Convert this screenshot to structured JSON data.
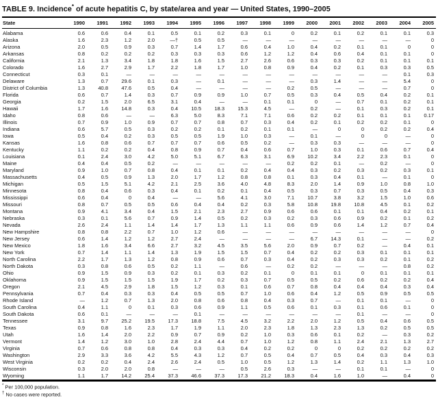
{
  "title": {
    "prefix": "TABLE 9. Incidence",
    "marker": "*",
    "suffix": " of acute hepatitis C, by state/area and year — United States, 1990–2005"
  },
  "table": {
    "columns": [
      "State",
      "1990",
      "1991",
      "1992",
      "1993",
      "1994",
      "1995",
      "1996",
      "1997",
      "1998",
      "1999",
      "2000",
      "2001",
      "2002",
      "2003",
      "2004",
      "2005"
    ],
    "rows": [
      {
        "state": "Alabama",
        "values": [
          "0.6",
          "0.6",
          "0.4",
          "0.1",
          "0.5",
          "0.1",
          "0.2",
          "0.3",
          "0.1",
          "0",
          "0.2",
          "0.1",
          "0.2",
          "0.1",
          "0.1",
          "0.3"
        ]
      },
      {
        "state": "Alaska",
        "values": [
          "1.6",
          "2.3",
          "1.2",
          "2.0",
          "—†",
          "0.5",
          "0.5",
          "—",
          "—",
          "—",
          "—",
          "—",
          "—",
          "—",
          "—",
          "0"
        ]
      },
      {
        "state": "Arizona",
        "values": [
          "2.0",
          "0.5",
          "0.9",
          "0.3",
          "0.7",
          "1.4",
          "1.7",
          "0.6",
          "0.4",
          "1.0",
          "0.4",
          "0.2",
          "0.1",
          "0.1",
          "0",
          "0"
        ]
      },
      {
        "state": "Arkansas",
        "values": [
          "0.8",
          "0.2",
          "0.2",
          "0.2",
          "0.3",
          "0.3",
          "0.3",
          "0.6",
          "1.2",
          "1.2",
          "0.4",
          "0.6",
          "0.4",
          "0.1",
          "0.1",
          "0"
        ]
      },
      {
        "state": "California",
        "values": [
          "2.1",
          "1.3",
          "3.4",
          "1.8",
          "1.8",
          "1.6",
          "1.5",
          "2.7",
          "2.6",
          "0.6",
          "0.3",
          "0.3",
          "0.2",
          "0.1",
          "0.1",
          "0.1"
        ]
      },
      {
        "state": "Colorado",
        "values": [
          "1.6",
          "2.7",
          "2.9",
          "1.7",
          "2.2",
          "1.8",
          "1.7",
          "1.0",
          "0.8",
          "0.9",
          "0.4",
          "0.2",
          "0.1",
          "0.3",
          "0.3",
          "0.5"
        ]
      },
      {
        "state": "Connecticut",
        "values": [
          "0.3",
          "0.1",
          "—",
          "—",
          "—",
          "—",
          "—",
          "—",
          "—",
          "—",
          "—",
          "—",
          "—",
          "—",
          "0.1",
          "0.3"
        ]
      },
      {
        "state": "Delaware",
        "values": [
          "1.3",
          "0.7",
          "29.6",
          "0.1",
          "0.3",
          "—",
          "0.1",
          "—",
          "—",
          "—",
          "0.3",
          "1.4",
          "—",
          "—",
          "5.4",
          "0"
        ]
      },
      {
        "state": "District of Columbia",
        "values": [
          "1.3",
          "40.8",
          "47.6",
          "0.5",
          "0.4",
          "—",
          "—",
          "—",
          "—",
          "0.2",
          "0.5",
          "—",
          "—",
          "—",
          "0.7",
          "0"
        ]
      },
      {
        "state": "Florida",
        "values": [
          "0.6",
          "0.7",
          "1.4",
          "0.3",
          "0.7",
          "0.9",
          "0.9",
          "1.0",
          "0.7",
          "0.5",
          "0.3",
          "0.4",
          "0.5",
          "0.4",
          "0.2",
          "0.1"
        ]
      },
      {
        "state": "Georgia",
        "values": [
          "0.2",
          "1.5",
          "2.0",
          "6.5",
          "3.1",
          "0.4",
          "—",
          "—",
          "0.1",
          "0.1",
          "0",
          "—",
          "0.7",
          "0.1",
          "0.2",
          "0.1"
        ]
      },
      {
        "state": "Hawaii",
        "values": [
          "1.7",
          "1.6",
          "14.8",
          "0.3",
          "0.4",
          "10.5",
          "18.3",
          "15.3",
          "4.5",
          "—",
          "0.2",
          "—",
          "0.1",
          "0.3",
          "0.2",
          "0.1"
        ]
      },
      {
        "state": "Idaho",
        "values": [
          "0.8",
          "0.6",
          "—",
          "—",
          "6.3",
          "5.0",
          "8.3",
          "7.1",
          "7.1",
          "0.6",
          "0.2",
          "0.2",
          "0.1",
          "0.1",
          "0.1",
          "0.17"
        ]
      },
      {
        "state": "Illinois",
        "values": [
          "0.7",
          "0.9",
          "1.0",
          "0.9",
          "0.7",
          "0.7",
          "0.8",
          "0.7",
          "0.3",
          "0.4",
          "0.2",
          "0.1",
          "0.2",
          "0.2",
          "0.1",
          "0"
        ]
      },
      {
        "state": "Indiana",
        "values": [
          "0.6",
          "5.7",
          "0.5",
          "0.3",
          "0.2",
          "0.2",
          "0.1",
          "0.2",
          "0.1",
          "0.1",
          "—",
          "0",
          "0",
          "0.2",
          "0.2",
          "0.4"
        ]
      },
      {
        "state": "Iowa",
        "values": [
          "0.5",
          "0.4",
          "0.2",
          "0.3",
          "0.5",
          "0.5",
          "1.9",
          "1.0",
          "0.3",
          "—",
          "0.1",
          "—",
          "0",
          "0",
          "—",
          "0"
        ]
      },
      {
        "state": "Kansas",
        "values": [
          "1.6",
          "0.8",
          "0.6",
          "0.7",
          "0.7",
          "0.7",
          "0.6",
          "0.5",
          "0.2",
          "—",
          "0.3",
          "0.3",
          "—",
          "—",
          "—",
          "0"
        ]
      },
      {
        "state": "Kentucky",
        "values": [
          "1.1",
          "0.2",
          "0.2",
          "0.4",
          "0.8",
          "0.9",
          "0.7",
          "0.4",
          "0.6",
          "0.7",
          "1.0",
          "0.3",
          "0.1",
          "0.6",
          "0.7",
          "0.4"
        ]
      },
      {
        "state": "Louisiana",
        "values": [
          "0.1",
          "2.4",
          "3.0",
          "4.2",
          "5.0",
          "5.1",
          "6.7",
          "6.3",
          "3.1",
          "6.9",
          "10.2",
          "3.4",
          "2.2",
          "2.3",
          "0.1",
          "0"
        ]
      },
      {
        "state": "Maine",
        "values": [
          "0.4",
          "0.4",
          "0.5",
          "0.2",
          "—",
          "—",
          "—",
          "—",
          "—",
          "0.2",
          "0.2",
          "0.1",
          "—",
          "0.2",
          "—",
          "0"
        ]
      },
      {
        "state": "Maryland",
        "values": [
          "0.9",
          "1.0",
          "0.7",
          "0.8",
          "0.4",
          "0.1",
          "0.1",
          "0.2",
          "0.4",
          "0.4",
          "0.3",
          "0.2",
          "0.3",
          "0.2",
          "0.3",
          "0.1"
        ]
      },
      {
        "state": "Massachusetts",
        "values": [
          "0.4",
          "0.5",
          "0.9",
          "1.3",
          "2.0",
          "1.7",
          "1.2",
          "0.8",
          "0.8",
          "0.1",
          "0.3",
          "0.4",
          "0.1",
          "—",
          "0.1",
          "0"
        ]
      },
      {
        "state": "Michigan",
        "values": [
          "0.5",
          "1.5",
          "5.1",
          "4.2",
          "2.1",
          "2.5",
          "3.6",
          "4.0",
          "4.8",
          "8.3",
          "2.0",
          "1.4",
          "0.9",
          "1.0",
          "0.8",
          "1.0"
        ]
      },
      {
        "state": "Minnesota",
        "values": [
          "0.8",
          "0.4",
          "0.6",
          "0.3",
          "0.4",
          "0.1",
          "0.2",
          "0.1",
          "0.4",
          "0.5",
          "0.3",
          "0.7",
          "0.3",
          "0.5",
          "0.4",
          "0.3"
        ]
      },
      {
        "state": "Mississippi",
        "values": [
          "0.6",
          "0.4",
          "0",
          "0.4",
          "—",
          "—",
          "5.6",
          "4.1",
          "3.0",
          "7.1",
          "10.7",
          "3.8",
          "3.2",
          "1.5",
          "1.0",
          "0.6"
        ]
      },
      {
        "state": "Missouri",
        "values": [
          "0.8",
          "0.7",
          "0.5",
          "0.5",
          "0.6",
          "0.4",
          "0.4",
          "0.2",
          "0.3",
          "5.8",
          "10.8",
          "19.8",
          "10.8",
          "4.5",
          "0.1",
          "0.2"
        ]
      },
      {
        "state": "Montana",
        "values": [
          "0.9",
          "4.1",
          "3.4",
          "0.4",
          "1.5",
          "2.1",
          "2.3",
          "2.7",
          "0.9",
          "0.6",
          "0.6",
          "0.1",
          "0.1",
          "0.4",
          "0.2",
          "0.1"
        ]
      },
      {
        "state": "Nebraska",
        "values": [
          "0.3",
          "0.1",
          "5.6",
          "0.7",
          "0.9",
          "1.4",
          "0.5",
          "0.2",
          "0.3",
          "0.2",
          "0.3",
          "0.6",
          "0.9",
          "0.2",
          "0.1",
          "0.2"
        ]
      },
      {
        "state": "Nevada",
        "values": [
          "2.6",
          "2.4",
          "1.1",
          "1.4",
          "1.4",
          "1.7",
          "1.3",
          "1.1",
          "1.1",
          "0.6",
          "0.9",
          "0.6",
          "1.4",
          "1.2",
          "0.7",
          "0.4"
        ]
      },
      {
        "state": "New Hampshire",
        "values": [
          "0.8",
          "0.8",
          "2.2",
          "0.7",
          "1.0",
          "1.2",
          "0.6",
          "—",
          "—",
          "—",
          "—",
          "—",
          "—",
          "—",
          "—",
          "0"
        ]
      },
      {
        "state": "New Jersey",
        "values": [
          "0.6",
          "1.4",
          "1.2",
          "1.2",
          "2.7",
          "2.4",
          "—",
          "—",
          "—",
          "—",
          "6.7",
          "14.3",
          "0.1",
          "—",
          "—",
          "0.2"
        ]
      },
      {
        "state": "New Mexico",
        "values": [
          "1.8",
          "1.6",
          "3.4",
          "6.6",
          "2.7",
          "3.2",
          "4.5",
          "3.5",
          "5.6",
          "2.0",
          "0.9",
          "0.7",
          "0.2",
          "—",
          "0.4",
          "0.1"
        ]
      },
      {
        "state": "New York",
        "values": [
          "0.7",
          "1.4",
          "1.1",
          "1.4",
          "1.3",
          "1.9",
          "1.5",
          "1.5",
          "0.7",
          "0.4",
          "0.2",
          "0.2",
          "0.3",
          "0.1",
          "0.1",
          "0.1"
        ]
      },
      {
        "state": "North Carolina",
        "values": [
          "2.2",
          "1.7",
          "1.3",
          "1.2",
          "0.8",
          "0.9",
          "0.6",
          "0.7",
          "0.3",
          "0.4",
          "0.2",
          "0.3",
          "0.3",
          "0.2",
          "0.1",
          "0.2"
        ]
      },
      {
        "state": "North Dakota",
        "values": [
          "0.3",
          "0.8",
          "0.6",
          "0.5",
          "0.2",
          "1.1",
          "—",
          "0.6",
          "—",
          "0.2",
          "0.2",
          "—",
          "—",
          "—",
          "0.8",
          "0.2"
        ]
      },
      {
        "state": "Ohio",
        "values": [
          "0.9",
          "1.5",
          "0.9",
          "0.3",
          "0.2",
          "0.1",
          "0.3",
          "0.2",
          "0.1",
          "0",
          "0.1",
          "0.1",
          "0",
          "0.1",
          "0.1",
          "0.1"
        ]
      },
      {
        "state": "Oklahoma",
        "values": [
          "0.9",
          "1.5",
          "1.5",
          "1.5",
          "1.9",
          "1.7",
          "0.2",
          "0.3",
          "0.7",
          "0.5",
          "0.5",
          "0.2",
          "0.6",
          "0.2",
          "0.2",
          "0.4"
        ]
      },
      {
        "state": "Oregon",
        "values": [
          "2.1",
          "4.5",
          "2.9",
          "1.8",
          "1.5",
          "1.2",
          "0.3",
          "0.1",
          "0.6",
          "0.7",
          "0.8",
          "0.4",
          "0.4",
          "0.4",
          "0.3",
          "0.4"
        ]
      },
      {
        "state": "Pennsylvania",
        "values": [
          "0.7",
          "0.4",
          "0.3",
          "0.3",
          "0.4",
          "0.5",
          "0.5",
          "0.7",
          "1.0",
          "0.6",
          "0.4",
          "1.2",
          "0.5",
          "0.9",
          "0.5",
          "0.5"
        ]
      },
      {
        "state": "Rhode Island",
        "values": [
          "—",
          "1.2",
          "0.7",
          "1.3",
          "2.0",
          "0.8",
          "0.6",
          "0.8",
          "0.4",
          "0.3",
          "0.7",
          "—",
          "0.1",
          "0.1",
          "—",
          "0"
        ]
      },
      {
        "state": "South Carolina",
        "values": [
          "0.4",
          "1.1",
          "0",
          "0.1",
          "0.3",
          "0.6",
          "0.9",
          "1.1",
          "0.5",
          "0.6",
          "0.1",
          "0.3",
          "0.1",
          "0.6",
          "0.1",
          "0"
        ]
      },
      {
        "state": "South Dakota",
        "values": [
          "0.6",
          "0.1",
          "—",
          "—",
          "—",
          "0.1",
          "—",
          "—",
          "—",
          "—",
          "—",
          "—",
          "0.1",
          "—",
          "—",
          "0"
        ]
      },
      {
        "state": "Tennessee",
        "values": [
          "3.1",
          "9.7",
          "25.2",
          "19.5",
          "17.3",
          "18.8",
          "7.5",
          "4.5",
          "3.2",
          "2.2",
          "2.0",
          "1.2",
          "0.5",
          "0.4",
          "0.6",
          "0.5"
        ]
      },
      {
        "state": "Texas",
        "values": [
          "0.9",
          "0.8",
          "1.6",
          "2.3",
          "1.7",
          "1.9",
          "1.1",
          "2.0",
          "2.3",
          "1.8",
          "1.3",
          "2.3",
          "1.3",
          "0.2",
          "0.5",
          "0.5"
        ]
      },
      {
        "state": "Utah",
        "values": [
          "1.6",
          "1.4",
          "2.0",
          "2.2",
          "0.9",
          "0.7",
          "0.9",
          "0.2",
          "1.0",
          "0.3",
          "0.6",
          "0.1",
          "0.2",
          "—",
          "0.3",
          "0.2"
        ]
      },
      {
        "state": "Vermont",
        "values": [
          "1.4",
          "1.2",
          "3.0",
          "1.0",
          "2.8",
          "2.4",
          "4.4",
          "0.7",
          "1.0",
          "1.2",
          "0.8",
          "1.1",
          "2.4",
          "2.1",
          "1.3",
          "2.7"
        ]
      },
      {
        "state": "Virginia",
        "values": [
          "0.7",
          "0.6",
          "0.8",
          "0.8",
          "0.4",
          "0.3",
          "0.3",
          "0.4",
          "0.2",
          "0.2",
          "0",
          "0",
          "0.2",
          "0.2",
          "0.2",
          "0.2"
        ]
      },
      {
        "state": "Washington",
        "values": [
          "2.9",
          "3.3",
          "3.6",
          "4.2",
          "5.5",
          "4.3",
          "1.2",
          "0.7",
          "0.5",
          "0.4",
          "0.7",
          "0.5",
          "0.4",
          "0.3",
          "0.4",
          "0.3"
        ]
      },
      {
        "state": "West Virginia",
        "values": [
          "0.2",
          "0.2",
          "0.4",
          "2.4",
          "2.6",
          "2.4",
          "0.5",
          "1.0",
          "0.5",
          "1.2",
          "1.3",
          "1.4",
          "0.2",
          "1.1",
          "1.3",
          "1.0"
        ]
      },
      {
        "state": "Wisconsin",
        "values": [
          "0.3",
          "2.0",
          "2.0",
          "0.8",
          "—",
          "—",
          "—",
          "0.5",
          "2.6",
          "0.3",
          "—",
          "—",
          "0.1",
          "0.1",
          "—",
          "0"
        ]
      },
      {
        "state": "Wyoming",
        "values": [
          "1.1",
          "1.7",
          "14.2",
          "25.4",
          "37.3",
          "46.6",
          "37.3",
          "17.3",
          "21.2",
          "18.3",
          "0.4",
          "1.6",
          "1.0",
          "—",
          "0.4",
          "0"
        ]
      }
    ]
  },
  "footnotes": [
    {
      "marker": "*",
      "text": " Per 100,000 population."
    },
    {
      "marker": "†",
      "text": " No cases were reported."
    }
  ]
}
